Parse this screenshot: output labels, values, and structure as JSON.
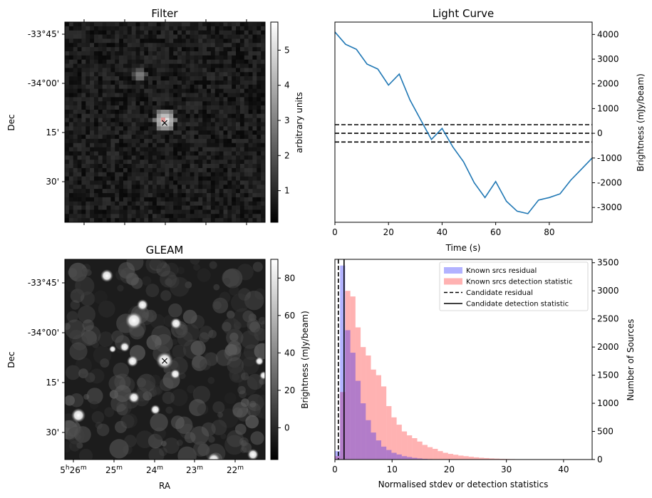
{
  "filter_panel": {
    "title": "Filter",
    "ylabel": "Dec",
    "dec_ticks": [
      "-33°45'",
      "-34°00'",
      "15'",
      "30'"
    ],
    "colorbar_label": "arbitrary units",
    "colorbar_ticks": [
      "1",
      "2",
      "3",
      "4",
      "5"
    ],
    "colorbar_range": [
      0.1,
      5.8
    ],
    "marker": "×",
    "marker_color": "#3333cc",
    "source_color": "#e06060"
  },
  "gleam_panel": {
    "title": "GLEAM",
    "ylabel": "Dec",
    "xlabel": "RA",
    "dec_ticks": [
      "-33°45'",
      "-34°00'",
      "15'",
      "30'"
    ],
    "ra_ticks": [
      "5h26m",
      "25m",
      "24m",
      "23m",
      "22m"
    ],
    "colorbar_label": "Brightness (mJy/beam)",
    "colorbar_ticks": [
      "0",
      "20",
      "40",
      "60",
      "80"
    ],
    "colorbar_range": [
      -17,
      90
    ],
    "marker": "×",
    "marker_color": "#3333cc"
  },
  "chart_data": [
    {
      "type": "line",
      "title": "Light Curve",
      "xlabel": "Time (s)",
      "ylabel": "Brightness (mJy/beam)",
      "xlim": [
        0,
        96
      ],
      "ylim": [
        -3600,
        4500
      ],
      "xticks": [
        0,
        20,
        40,
        60,
        80
      ],
      "yticks": [
        -3000,
        -2000,
        -1000,
        0,
        1000,
        2000,
        3000,
        4000
      ],
      "line_color": "#1f77b4",
      "series": [
        {
          "x": [
            0,
            4,
            8,
            12,
            16,
            20,
            24,
            28,
            32,
            36,
            40,
            44,
            48,
            52,
            56,
            60,
            64,
            68,
            72,
            76,
            80,
            84,
            88,
            92,
            96
          ],
          "values": [
            4100,
            3600,
            3400,
            2800,
            2600,
            1950,
            2400,
            1350,
            550,
            -250,
            200,
            -550,
            -1150,
            -2000,
            -2600,
            -1950,
            -2750,
            -3150,
            -3250,
            -2700,
            -2600,
            -2450,
            -1900,
            -1450,
            -1000
          ]
        }
      ],
      "hlines": [
        {
          "y": 350,
          "style": "dashed"
        },
        {
          "y": 0,
          "style": "dashed"
        },
        {
          "y": -350,
          "style": "dashed"
        }
      ]
    },
    {
      "type": "bar",
      "xlabel": "Normalised stdev or detection statistics",
      "ylabel": "Number of Sources",
      "xlim": [
        0,
        45
      ],
      "ylim": [
        0,
        3560
      ],
      "xticks": [
        0,
        10,
        20,
        30,
        40
      ],
      "yticks": [
        0,
        500,
        1000,
        1500,
        2000,
        2500,
        3000,
        3500
      ],
      "legend_position": "top-right",
      "bin_width": 0.9,
      "series": [
        {
          "name": "Known srcs residual",
          "color": "#0000ff",
          "alpha": 0.3,
          "bin_start": 0,
          "values": [
            150,
            3450,
            2300,
            1900,
            1400,
            1000,
            700,
            480,
            340,
            230,
            170,
            120,
            90,
            60,
            45,
            30,
            20,
            12,
            8,
            5,
            3
          ]
        },
        {
          "name": "Known srcs detection statistic",
          "color": "#ff0000",
          "alpha": 0.3,
          "bin_start": 0,
          "values": [
            60,
            1200,
            3000,
            2900,
            2350,
            2000,
            1850,
            1600,
            1500,
            1300,
            950,
            750,
            620,
            500,
            430,
            380,
            320,
            260,
            220,
            190,
            150,
            120,
            100,
            85,
            70,
            60,
            50,
            40,
            32,
            26,
            20,
            16,
            12,
            10,
            8,
            6,
            5,
            4,
            3,
            3,
            2,
            2,
            2,
            1,
            1,
            1,
            1,
            1,
            1,
            1
          ]
        }
      ],
      "vlines": [
        {
          "name": "Candidate residual",
          "x": 0.6,
          "style": "dashed"
        },
        {
          "name": "Candidate detection statistic",
          "x": 1.6,
          "style": "solid"
        }
      ]
    }
  ]
}
